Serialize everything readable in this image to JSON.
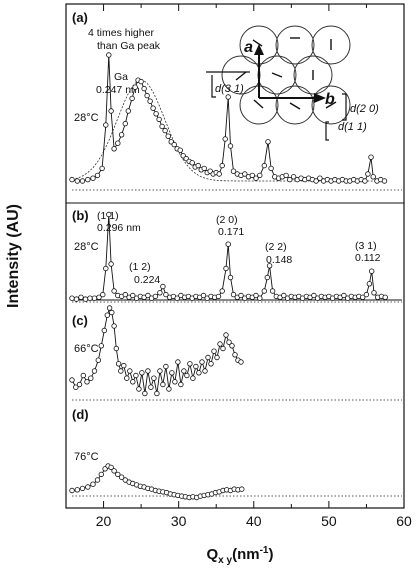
{
  "chart_data": {
    "type": "scatter",
    "xlabel": "Qxy(nm-1)",
    "xlabel_parts": {
      "base": "Q",
      "sub": "x y",
      "unit": "(nm",
      "exp": "-1",
      "close": ")"
    },
    "ylabel": "Intensity  (AU)",
    "xlim": [
      15,
      60
    ],
    "xticks": [
      20,
      30,
      40,
      50,
      60
    ],
    "panels": [
      {
        "id": "a",
        "label": "(a)",
        "temperature": "28°C",
        "note": [
          "4 times higher",
          "than Ga peak"
        ],
        "peaks": [
          {
            "name": "Ga",
            "d": "0.247 nm",
            "x": 25
          }
        ],
        "series_points": [
          [
            15.8,
            0.06
          ],
          [
            16.5,
            0.05
          ],
          [
            17.2,
            0.05
          ],
          [
            17.9,
            0.06
          ],
          [
            18.6,
            0.07
          ],
          [
            19.2,
            0.09
          ],
          [
            19.8,
            0.14
          ],
          [
            20.3,
            0.45
          ],
          [
            20.7,
            0.95
          ],
          [
            21.0,
            0.55
          ],
          [
            21.4,
            0.28
          ],
          [
            21.9,
            0.32
          ],
          [
            22.4,
            0.38
          ],
          [
            22.9,
            0.46
          ],
          [
            23.3,
            0.55
          ],
          [
            23.8,
            0.64
          ],
          [
            24.2,
            0.72
          ],
          [
            24.6,
            0.77
          ],
          [
            25.0,
            0.76
          ],
          [
            25.4,
            0.71
          ],
          [
            25.8,
            0.66
          ],
          [
            26.2,
            0.62
          ],
          [
            26.6,
            0.57
          ],
          [
            27.0,
            0.53
          ],
          [
            27.4,
            0.49
          ],
          [
            27.8,
            0.44
          ],
          [
            28.2,
            0.41
          ],
          [
            28.6,
            0.37
          ],
          [
            29.0,
            0.33
          ],
          [
            29.4,
            0.31
          ],
          [
            29.8,
            0.28
          ],
          [
            30.2,
            0.27
          ],
          [
            30.6,
            0.23
          ],
          [
            31.0,
            0.21
          ],
          [
            31.4,
            0.19
          ],
          [
            31.8,
            0.18
          ],
          [
            32.2,
            0.15
          ],
          [
            32.6,
            0.16
          ],
          [
            33.0,
            0.13
          ],
          [
            33.4,
            0.14
          ],
          [
            33.8,
            0.11
          ],
          [
            34.2,
            0.12
          ],
          [
            34.6,
            0.1
          ],
          [
            35.0,
            0.11
          ],
          [
            35.4,
            0.1
          ],
          [
            35.8,
            0.16
          ],
          [
            36.2,
            0.35
          ],
          [
            36.6,
            0.65
          ],
          [
            36.9,
            0.3
          ],
          [
            37.3,
            0.12
          ],
          [
            37.8,
            0.1
          ],
          [
            38.3,
            0.09
          ],
          [
            38.8,
            0.1
          ],
          [
            39.3,
            0.08
          ],
          [
            39.8,
            0.09
          ],
          [
            40.3,
            0.07
          ],
          [
            40.8,
            0.09
          ],
          [
            41.4,
            0.16
          ],
          [
            41.9,
            0.33
          ],
          [
            42.3,
            0.14
          ],
          [
            42.8,
            0.08
          ],
          [
            43.3,
            0.07
          ],
          [
            43.8,
            0.08
          ],
          [
            44.3,
            0.09
          ],
          [
            44.8,
            0.06
          ],
          [
            45.3,
            0.08
          ],
          [
            45.8,
            0.06
          ],
          [
            46.3,
            0.07
          ],
          [
            46.8,
            0.06
          ],
          [
            47.3,
            0.07
          ],
          [
            47.8,
            0.06
          ],
          [
            48.3,
            0.05
          ],
          [
            48.8,
            0.07
          ],
          [
            49.3,
            0.05
          ],
          [
            49.8,
            0.06
          ],
          [
            50.3,
            0.05
          ],
          [
            50.8,
            0.06
          ],
          [
            51.3,
            0.05
          ],
          [
            51.8,
            0.06
          ],
          [
            52.3,
            0.05
          ],
          [
            52.8,
            0.05
          ],
          [
            53.3,
            0.06
          ],
          [
            53.8,
            0.05
          ],
          [
            54.3,
            0.06
          ],
          [
            54.8,
            0.05
          ],
          [
            55.2,
            0.1
          ],
          [
            55.6,
            0.22
          ],
          [
            55.9,
            0.08
          ],
          [
            56.4,
            0.05
          ],
          [
            56.9,
            0.06
          ],
          [
            57.4,
            0.05
          ]
        ]
      },
      {
        "id": "b",
        "label": "(b)",
        "temperature": "28°C",
        "peaks": [
          {
            "hk": "(1  1)",
            "d": "0.296 nm",
            "x": 20.7
          },
          {
            "hk": "(1  2)",
            "d": "0.224",
            "x": 27.9
          },
          {
            "hk": "(2  0)",
            "d": "0.171",
            "x": 36.6
          },
          {
            "hk": "(2  2)",
            "d": "0.148",
            "x": 42.1
          },
          {
            "hk": "(3  1)",
            "d": "0.112",
            "x": 55.7
          }
        ],
        "series_points": [
          [
            15.8,
            0.02
          ],
          [
            16.4,
            0.01
          ],
          [
            17.0,
            0.03
          ],
          [
            17.6,
            0.01
          ],
          [
            18.2,
            0.02
          ],
          [
            18.8,
            0.02
          ],
          [
            19.4,
            0.03
          ],
          [
            19.9,
            0.06
          ],
          [
            20.3,
            0.35
          ],
          [
            20.7,
            0.95
          ],
          [
            21.0,
            0.4
          ],
          [
            21.4,
            0.1
          ],
          [
            21.9,
            0.05
          ],
          [
            22.4,
            0.04
          ],
          [
            22.9,
            0.06
          ],
          [
            23.4,
            0.03
          ],
          [
            23.9,
            0.05
          ],
          [
            24.4,
            0.02
          ],
          [
            24.9,
            0.04
          ],
          [
            25.4,
            0.03
          ],
          [
            25.9,
            0.05
          ],
          [
            26.4,
            0.02
          ],
          [
            26.9,
            0.04
          ],
          [
            27.5,
            0.08
          ],
          [
            27.9,
            0.15
          ],
          [
            28.3,
            0.06
          ],
          [
            28.8,
            0.03
          ],
          [
            29.3,
            0.04
          ],
          [
            29.8,
            0.02
          ],
          [
            30.3,
            0.05
          ],
          [
            30.8,
            0.03
          ],
          [
            31.3,
            0.04
          ],
          [
            31.8,
            0.02
          ],
          [
            32.3,
            0.04
          ],
          [
            32.8,
            0.03
          ],
          [
            33.3,
            0.05
          ],
          [
            33.8,
            0.02
          ],
          [
            34.3,
            0.04
          ],
          [
            34.8,
            0.03
          ],
          [
            35.3,
            0.04
          ],
          [
            35.8,
            0.1
          ],
          [
            36.3,
            0.35
          ],
          [
            36.6,
            0.62
          ],
          [
            36.9,
            0.25
          ],
          [
            37.3,
            0.06
          ],
          [
            37.8,
            0.03
          ],
          [
            38.3,
            0.05
          ],
          [
            38.8,
            0.02
          ],
          [
            39.3,
            0.04
          ],
          [
            39.8,
            0.03
          ],
          [
            40.3,
            0.05
          ],
          [
            40.8,
            0.02
          ],
          [
            41.4,
            0.1
          ],
          [
            41.8,
            0.25
          ],
          [
            42.1,
            0.38
          ],
          [
            42.5,
            0.1
          ],
          [
            43.0,
            0.04
          ],
          [
            43.5,
            0.03
          ],
          [
            44.0,
            0.05
          ],
          [
            44.5,
            0.02
          ],
          [
            45.0,
            0.04
          ],
          [
            45.5,
            0.03
          ],
          [
            46.0,
            0.04
          ],
          [
            46.5,
            0.02
          ],
          [
            47.0,
            0.04
          ],
          [
            47.5,
            0.03
          ],
          [
            48.0,
            0.05
          ],
          [
            48.5,
            0.02
          ],
          [
            49.0,
            0.04
          ],
          [
            49.5,
            0.03
          ],
          [
            50.0,
            0.04
          ],
          [
            50.5,
            0.02
          ],
          [
            51.0,
            0.04
          ],
          [
            51.5,
            0.03
          ],
          [
            52.0,
            0.05
          ],
          [
            52.5,
            0.02
          ],
          [
            53.0,
            0.04
          ],
          [
            53.5,
            0.03
          ],
          [
            54.0,
            0.04
          ],
          [
            54.5,
            0.03
          ],
          [
            55.0,
            0.06
          ],
          [
            55.4,
            0.18
          ],
          [
            55.7,
            0.32
          ],
          [
            56.0,
            0.08
          ],
          [
            56.5,
            0.03
          ],
          [
            57.0,
            0.04
          ],
          [
            57.5,
            0.03
          ]
        ]
      },
      {
        "id": "c",
        "label": "(c)",
        "temperature": "66°C",
        "series_points": [
          [
            15.8,
            0.2
          ],
          [
            16.3,
            0.12
          ],
          [
            16.8,
            0.15
          ],
          [
            17.3,
            0.25
          ],
          [
            17.8,
            0.18
          ],
          [
            18.3,
            0.22
          ],
          [
            18.8,
            0.3
          ],
          [
            19.3,
            0.42
          ],
          [
            19.7,
            0.58
          ],
          [
            20.1,
            0.75
          ],
          [
            20.5,
            0.92
          ],
          [
            20.8,
            1.0
          ],
          [
            21.1,
            0.95
          ],
          [
            21.4,
            0.8
          ],
          [
            21.7,
            0.55
          ],
          [
            22.0,
            0.38
          ],
          [
            22.3,
            0.3
          ],
          [
            22.7,
            0.36
          ],
          [
            23.1,
            0.22
          ],
          [
            23.5,
            0.3
          ],
          [
            23.9,
            0.18
          ],
          [
            24.3,
            0.25
          ],
          [
            24.7,
            0.1
          ],
          [
            25.1,
            0.28
          ],
          [
            25.5,
            0.05
          ],
          [
            25.9,
            0.3
          ],
          [
            26.3,
            0.12
          ],
          [
            26.7,
            0.22
          ],
          [
            27.1,
            0.05
          ],
          [
            27.5,
            0.3
          ],
          [
            27.9,
            0.15
          ],
          [
            28.3,
            0.35
          ],
          [
            28.7,
            0.1
          ],
          [
            29.1,
            0.28
          ],
          [
            29.5,
            0.18
          ],
          [
            29.9,
            0.4
          ],
          [
            30.3,
            0.15
          ],
          [
            30.7,
            0.3
          ],
          [
            31.1,
            0.25
          ],
          [
            31.5,
            0.38
          ],
          [
            31.9,
            0.22
          ],
          [
            32.3,
            0.35
          ],
          [
            32.7,
            0.28
          ],
          [
            33.1,
            0.4
          ],
          [
            33.5,
            0.3
          ],
          [
            33.9,
            0.45
          ],
          [
            34.3,
            0.38
          ],
          [
            34.7,
            0.52
          ],
          [
            35.1,
            0.45
          ],
          [
            35.5,
            0.6
          ],
          [
            35.9,
            0.55
          ],
          [
            36.3,
            0.7
          ],
          [
            36.7,
            0.62
          ],
          [
            37.1,
            0.58
          ],
          [
            37.5,
            0.48
          ],
          [
            37.9,
            0.42
          ],
          [
            38.3,
            0.4
          ]
        ]
      },
      {
        "id": "d",
        "label": "(d)",
        "temperature": "76°C",
        "series_points": [
          [
            15.8,
            0.05
          ],
          [
            16.5,
            0.06
          ],
          [
            17.2,
            0.08
          ],
          [
            17.9,
            0.1
          ],
          [
            18.6,
            0.14
          ],
          [
            19.2,
            0.2
          ],
          [
            19.7,
            0.28
          ],
          [
            20.2,
            0.36
          ],
          [
            20.6,
            0.4
          ],
          [
            21.0,
            0.38
          ],
          [
            21.4,
            0.33
          ],
          [
            21.9,
            0.28
          ],
          [
            22.4,
            0.24
          ],
          [
            22.9,
            0.2
          ],
          [
            23.4,
            0.17
          ],
          [
            23.9,
            0.15
          ],
          [
            24.4,
            0.13
          ],
          [
            24.9,
            0.11
          ],
          [
            25.4,
            0.1
          ],
          [
            25.9,
            0.08
          ],
          [
            26.4,
            0.07
          ],
          [
            26.9,
            0.05
          ],
          [
            27.4,
            0.04
          ],
          [
            27.9,
            0.03
          ],
          [
            28.4,
            0.02
          ],
          [
            28.9,
            0.0
          ],
          [
            29.4,
            -0.01
          ],
          [
            29.9,
            -0.02
          ],
          [
            30.4,
            -0.03
          ],
          [
            30.9,
            -0.04
          ],
          [
            31.4,
            -0.05
          ],
          [
            31.9,
            -0.04
          ],
          [
            32.4,
            -0.05
          ],
          [
            32.9,
            -0.03
          ],
          [
            33.4,
            -0.02
          ],
          [
            33.9,
            -0.01
          ],
          [
            34.4,
            0.0
          ],
          [
            34.9,
            0.02
          ],
          [
            35.4,
            0.03
          ],
          [
            35.9,
            0.05
          ],
          [
            36.4,
            0.06
          ],
          [
            36.9,
            0.05
          ],
          [
            37.4,
            0.07
          ],
          [
            37.9,
            0.06
          ],
          [
            38.4,
            0.07
          ]
        ]
      }
    ],
    "inset": {
      "axis_labels": [
        "a",
        "b"
      ],
      "distances": [
        "d(3 1)",
        "d(2 0)",
        "d(1 1)"
      ]
    }
  }
}
